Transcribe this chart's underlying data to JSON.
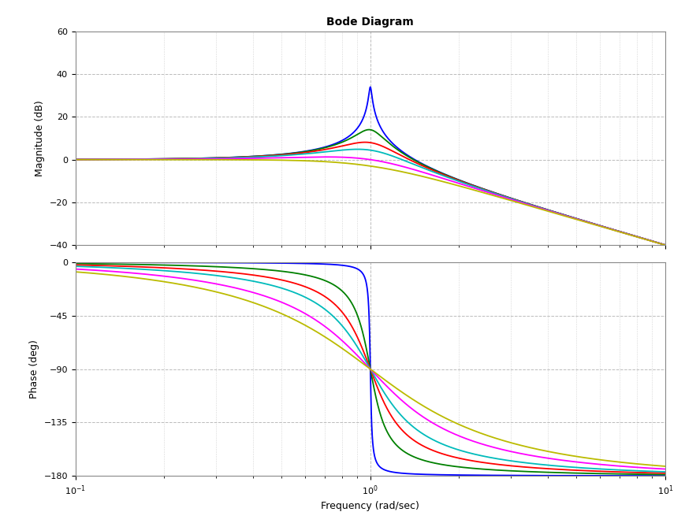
{
  "title": "Bode Diagram",
  "xlabel": "Frequency (rad/sec)",
  "ylabel_mag": "Magnitude (dB)",
  "ylabel_phase": "Phase (deg)",
  "omega_n": 1.0,
  "zeta_values": [
    0.01,
    0.1,
    0.2,
    0.3,
    0.5,
    0.707
  ],
  "colors": [
    "#0000FF",
    "#008000",
    "#FF0000",
    "#00BBBB",
    "#FF00FF",
    "#BBBB00"
  ],
  "mag_ylim": [
    -40,
    60
  ],
  "mag_yticks": [
    -40,
    -20,
    0,
    20,
    40,
    60
  ],
  "phase_ylim": [
    -180,
    0
  ],
  "phase_yticks": [
    -180,
    -135,
    -90,
    -45,
    0
  ],
  "freq_xlim": [
    0.1,
    10
  ],
  "background_color": "#FFFFFF",
  "plot_bg_color": "#FFFFFF",
  "grid_color": "#BBBBBB",
  "title_fontsize": 10,
  "label_fontsize": 9,
  "tick_fontsize": 8,
  "linewidth": 1.3
}
